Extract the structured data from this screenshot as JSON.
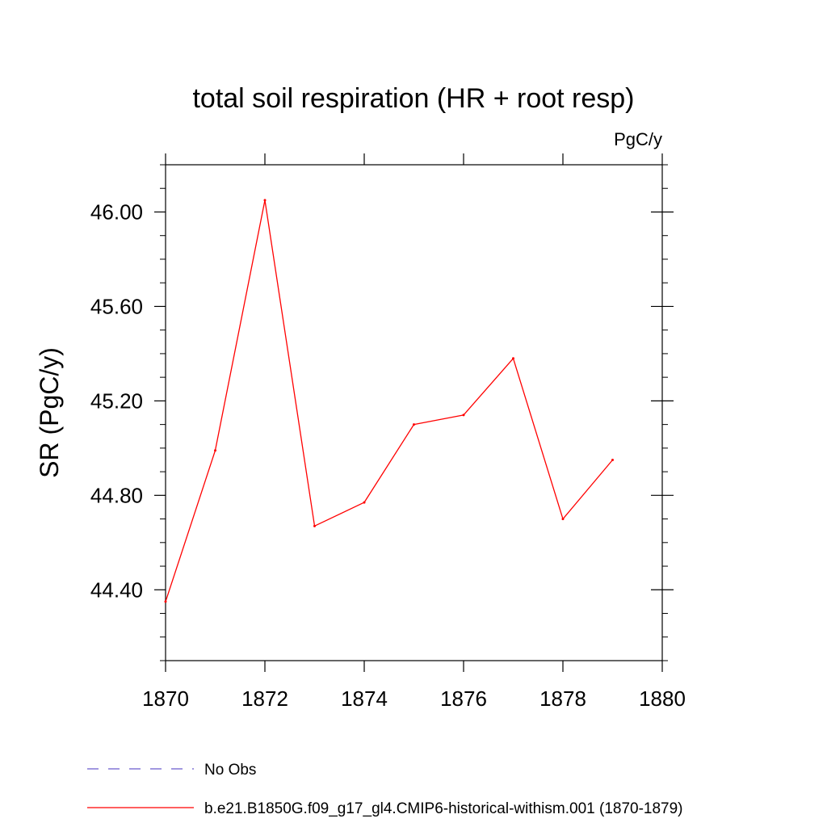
{
  "chart_data": {
    "type": "line",
    "title": "total soil respiration (HR + root resp)",
    "units": "PgC/y",
    "xlabel": "",
    "ylabel": "SR  (PgC/y)",
    "xlim": [
      1870,
      1880
    ],
    "ylim": [
      44.1,
      46.2
    ],
    "x_ticks": [
      1870,
      1872,
      1874,
      1876,
      1878,
      1880
    ],
    "x_tick_labels": [
      "1870",
      "1872",
      "1874",
      "1876",
      "1878",
      "1880"
    ],
    "y_ticks": [
      44.4,
      44.8,
      45.2,
      45.6,
      46.0
    ],
    "y_tick_labels": [
      "44.40",
      "44.80",
      "45.20",
      "45.60",
      "46.00"
    ],
    "grid": false,
    "legend_position": "bottom",
    "x": [
      1870,
      1871,
      1872,
      1873,
      1874,
      1875,
      1876,
      1877,
      1878,
      1879
    ],
    "series": [
      {
        "name": "b.e21.B1850G.f09_g17_gl4.CMIP6-historical-withism.001 (1870-1879)",
        "color": "#ff0000",
        "dash": "solid",
        "values": [
          44.35,
          44.99,
          46.05,
          44.67,
          44.77,
          45.1,
          45.14,
          45.38,
          44.7,
          44.95
        ]
      }
    ],
    "legend": [
      {
        "label": "No Obs",
        "color": "#6a5acd",
        "dash": "dashed"
      },
      {
        "label": "b.e21.B1850G.f09_g17_gl4.CMIP6-historical-withism.001 (1870-1879)",
        "color": "#ff0000",
        "dash": "solid"
      }
    ]
  }
}
